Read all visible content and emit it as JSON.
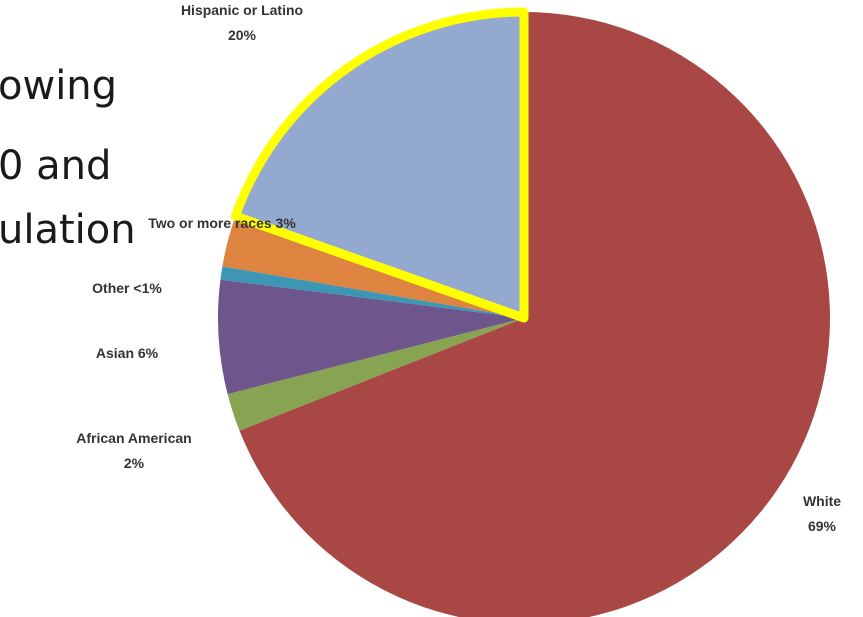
{
  "background_text": [
    "owing",
    "0 and",
    "ulation"
  ],
  "chart_data": {
    "type": "pie",
    "title": "",
    "slices": [
      {
        "label": "White",
        "value": 69,
        "percent_text": "69%",
        "color": "#a84744"
      },
      {
        "label": "African American",
        "value": 2,
        "percent_text": "2%",
        "color": "#87a453"
      },
      {
        "label": "Asian",
        "value": 6,
        "percent_text": "6%",
        "color": "#6e558c"
      },
      {
        "label": "Other",
        "value": 0.7,
        "percent_text": "<1%",
        "color": "#3c97b5"
      },
      {
        "label": "Two or more races",
        "value": 2.7,
        "percent_text": "3%",
        "color": "#de8340"
      },
      {
        "label": "Hispanic or Latino",
        "value": 19.6,
        "percent_text": "20%",
        "color": "#94a9d0",
        "highlight": "#ffff00"
      }
    ],
    "labels": [
      {
        "slice": 0,
        "lines": [
          "White",
          "69%"
        ]
      },
      {
        "slice": 1,
        "lines": [
          "African American",
          "2%"
        ]
      },
      {
        "slice": 2,
        "lines": [
          "Asian  6%"
        ]
      },
      {
        "slice": 3,
        "lines": [
          "Other  <1%"
        ]
      },
      {
        "slice": 4,
        "lines": [
          "Two or more races  3%"
        ]
      },
      {
        "slice": 5,
        "lines": [
          "Hispanic or Latino",
          "20%"
        ]
      }
    ],
    "legend": "none"
  }
}
